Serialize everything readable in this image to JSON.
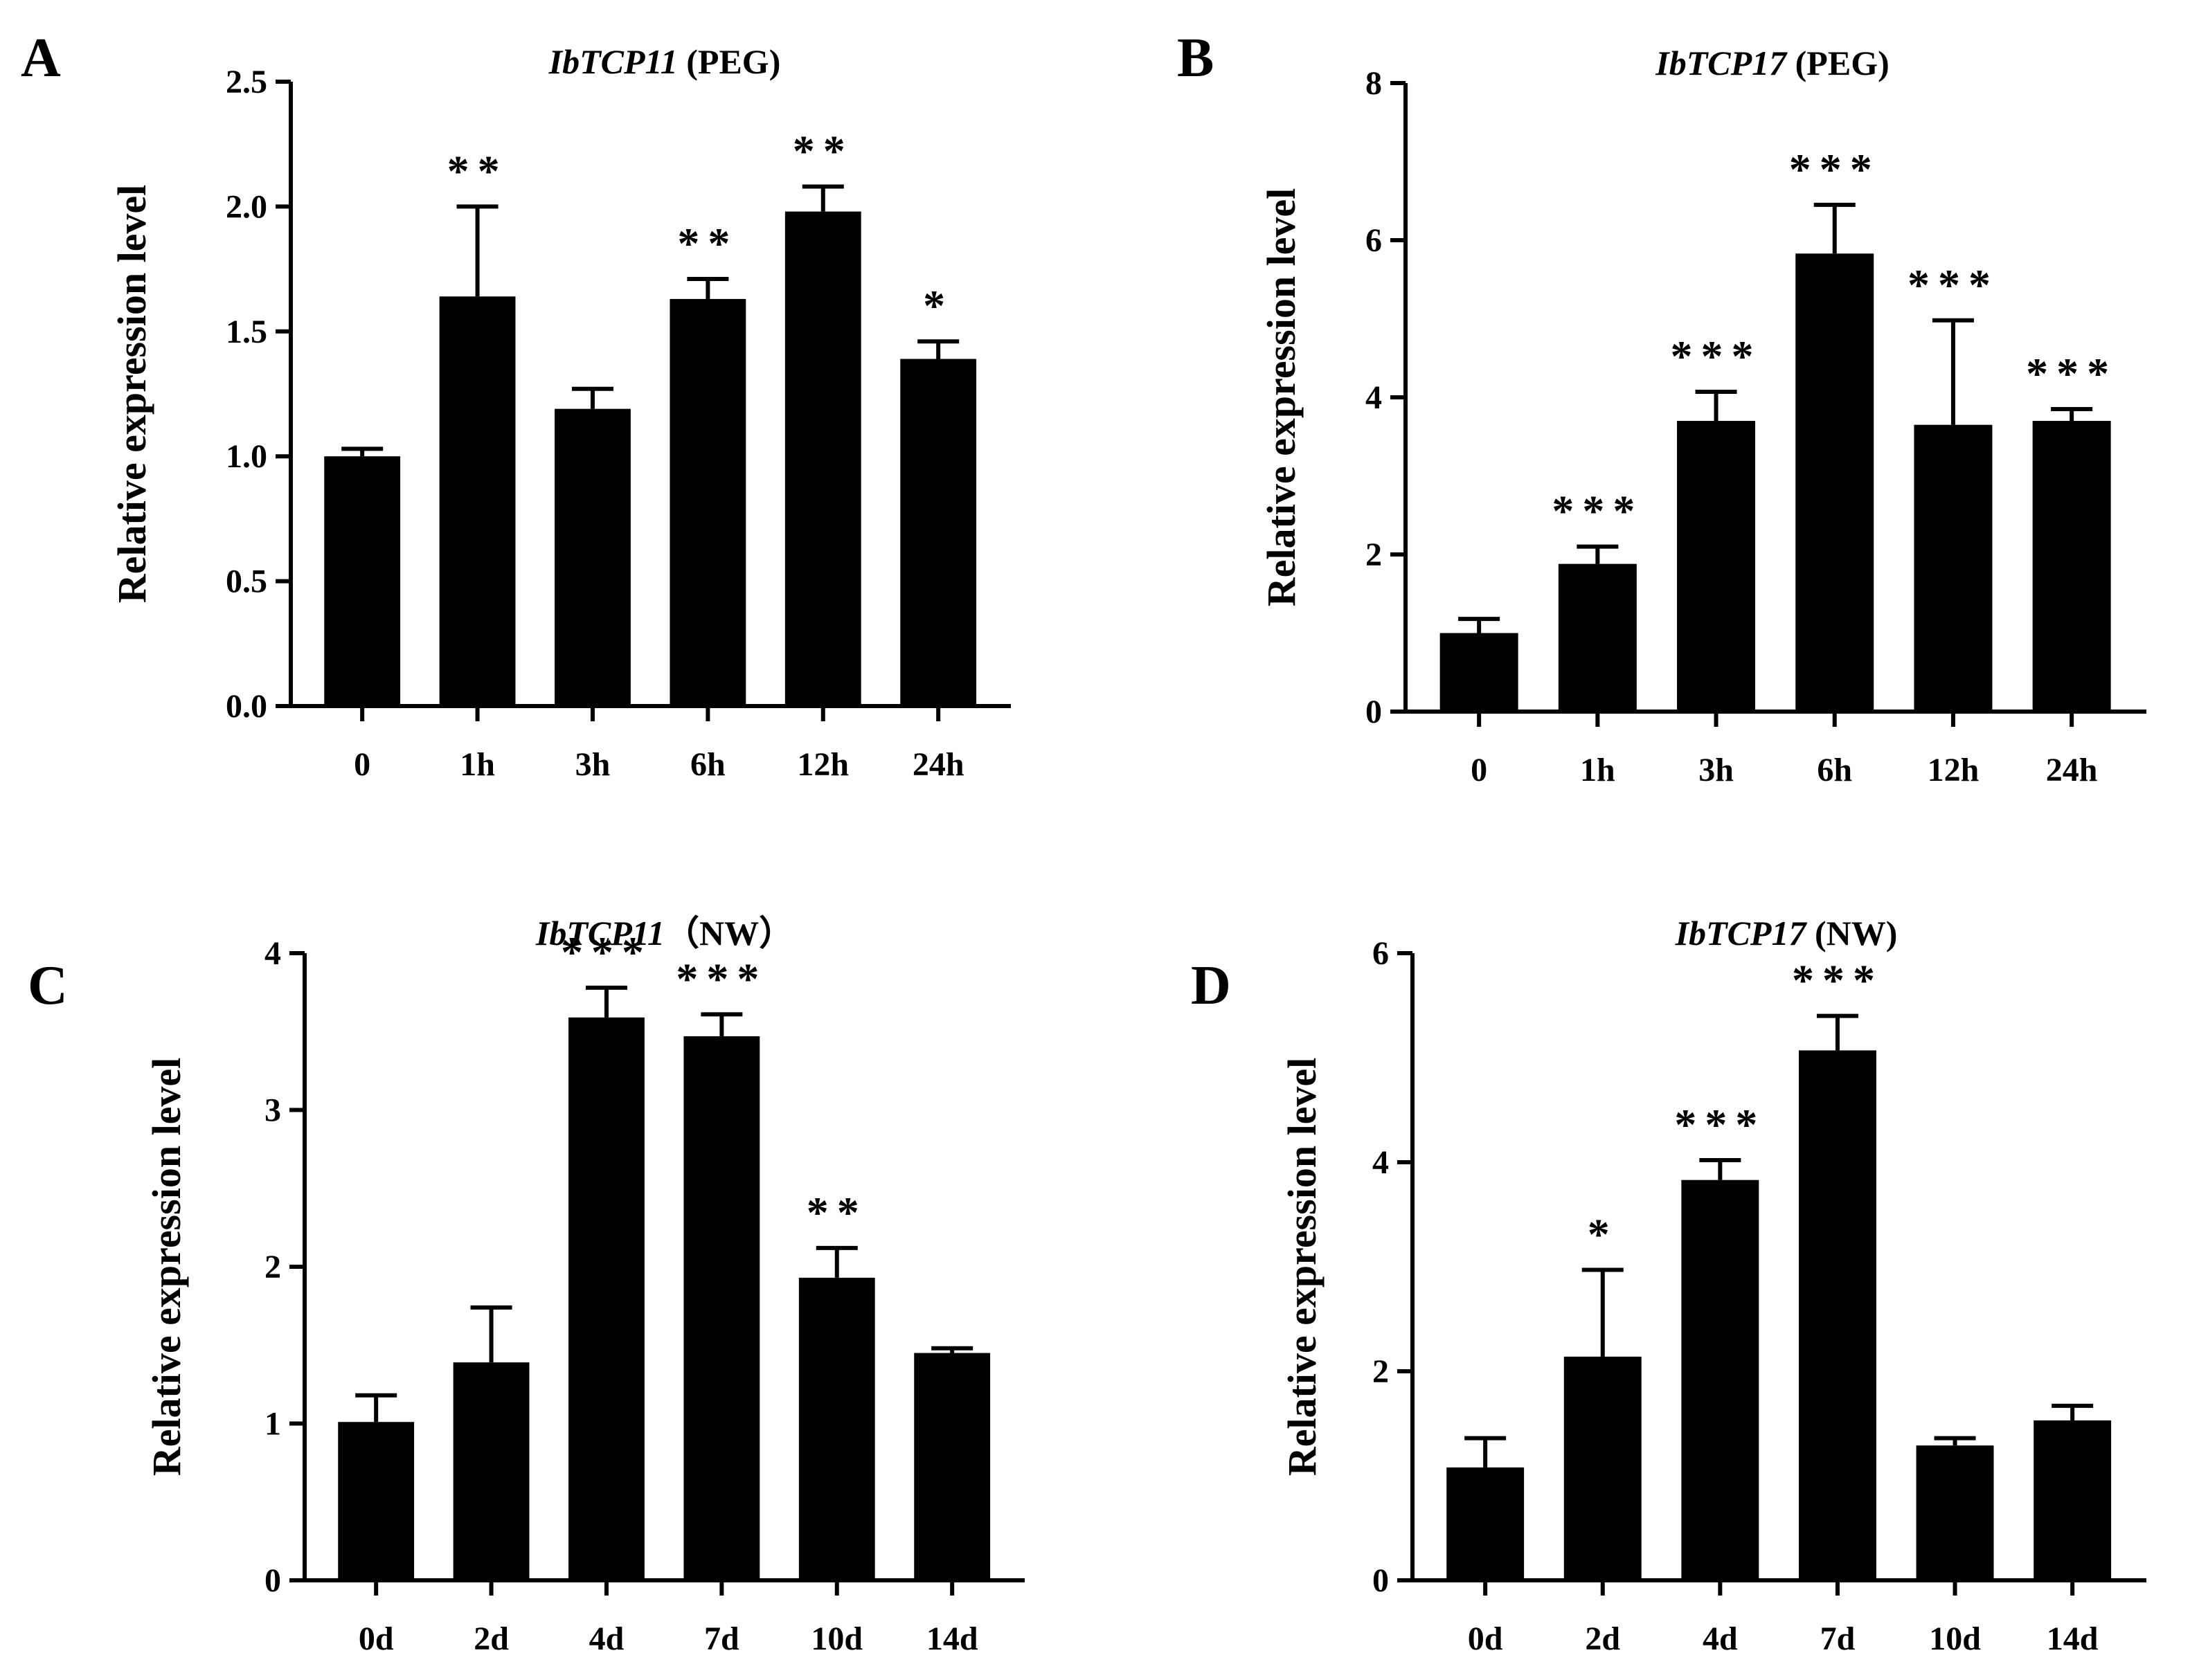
{
  "chart_data": [
    {
      "type": "bar",
      "panel": "A",
      "gene": "IbTCP11",
      "treatment": " (PEG)",
      "ylabel": "Relative expression level",
      "xlabel": "",
      "categories": [
        "0",
        "1h",
        "3h",
        "6h",
        "12h",
        "24h"
      ],
      "values": [
        1.0,
        1.64,
        1.19,
        1.63,
        1.98,
        1.39
      ],
      "errors": [
        0.03,
        0.36,
        0.08,
        0.08,
        0.1,
        0.07
      ],
      "significance": [
        "",
        "**",
        "",
        "**",
        "**",
        "*"
      ],
      "ylim": [
        0,
        2.5
      ],
      "yticks": [
        "0.0",
        "0.5",
        "1.0",
        "1.5",
        "2.0",
        "2.5"
      ],
      "ytick_values": [
        0,
        0.5,
        1.0,
        1.5,
        2.0,
        2.5
      ]
    },
    {
      "type": "bar",
      "panel": "B",
      "gene": "IbTCP17",
      "treatment": " (PEG)",
      "ylabel": "Relative expression level",
      "xlabel": "",
      "categories": [
        "0",
        "1h",
        "3h",
        "6h",
        "12h",
        "24h"
      ],
      "values": [
        1.0,
        1.88,
        3.7,
        5.83,
        3.65,
        3.7
      ],
      "errors": [
        0.18,
        0.22,
        0.37,
        0.62,
        1.33,
        0.15
      ],
      "significance": [
        "",
        "***",
        "***",
        "***",
        "***",
        "***"
      ],
      "ylim": [
        0,
        8
      ],
      "yticks": [
        "0",
        "2",
        "4",
        "6",
        "8"
      ],
      "ytick_values": [
        0,
        2,
        4,
        6,
        8
      ]
    },
    {
      "type": "bar",
      "panel": "C",
      "gene": "IbTCP11",
      "treatment": "（NW）",
      "ylabel": "Relative expression level",
      "xlabel": "",
      "categories": [
        "0d",
        "2d",
        "4d",
        "7d",
        "10d",
        "14d"
      ],
      "values": [
        1.01,
        1.39,
        3.59,
        3.47,
        1.93,
        1.45
      ],
      "errors": [
        0.17,
        0.35,
        0.19,
        0.14,
        0.19,
        0.03
      ],
      "significance": [
        "",
        "",
        "***",
        "***",
        "**",
        ""
      ],
      "ylim": [
        0,
        4
      ],
      "yticks": [
        "0",
        "1",
        "2",
        "3",
        "4"
      ],
      "ytick_values": [
        0,
        1,
        2,
        3,
        4
      ]
    },
    {
      "type": "bar",
      "panel": "D",
      "gene": "IbTCP17",
      "treatment": " (NW)",
      "ylabel": "Relative expression level",
      "xlabel": "",
      "categories": [
        "0d",
        "2d",
        "4d",
        "7d",
        "10d",
        "14d"
      ],
      "values": [
        1.08,
        2.14,
        3.83,
        5.07,
        1.29,
        1.53
      ],
      "errors": [
        0.28,
        0.83,
        0.19,
        0.33,
        0.07,
        0.14
      ],
      "significance": [
        "",
        "*",
        "***",
        "***",
        "",
        ""
      ],
      "ylim": [
        0,
        6
      ],
      "yticks": [
        "0",
        "2",
        "4",
        "6"
      ],
      "ytick_values": [
        0,
        2,
        4,
        6
      ]
    }
  ]
}
